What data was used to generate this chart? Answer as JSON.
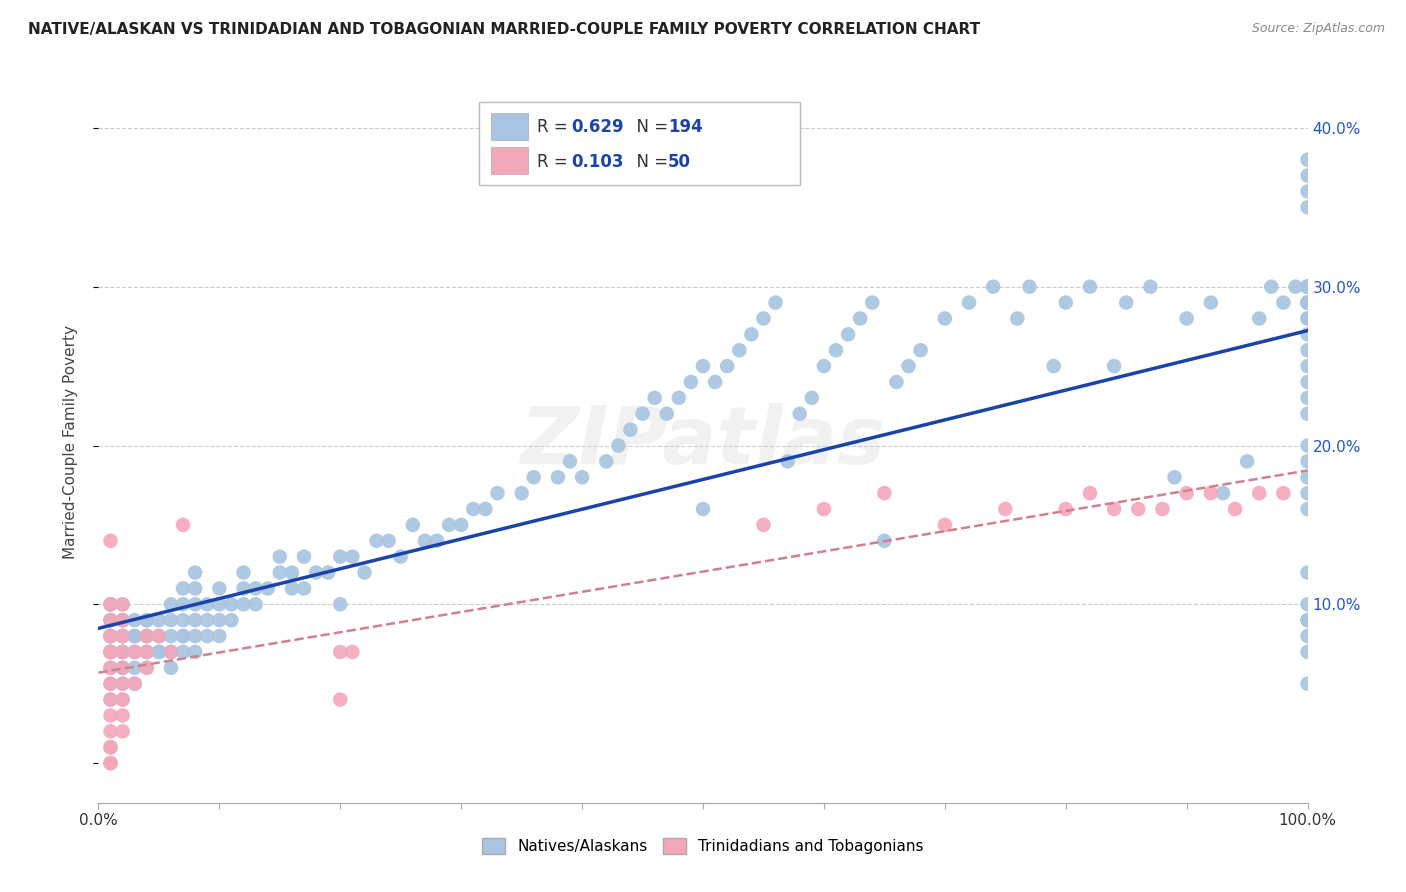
{
  "title": "NATIVE/ALASKAN VS TRINIDADIAN AND TOBAGONIAN MARRIED-COUPLE FAMILY POVERTY CORRELATION CHART",
  "source": "Source: ZipAtlas.com",
  "ylabel": "Married-Couple Family Poverty",
  "ytick_vals": [
    0.0,
    0.1,
    0.2,
    0.3,
    0.4
  ],
  "ytick_labels_right": [
    "",
    "10.0%",
    "20.0%",
    "30.0%",
    "40.0%"
  ],
  "blue_R": 0.629,
  "blue_N": 194,
  "pink_R": 0.103,
  "pink_N": 50,
  "blue_color": "#a8c4e0",
  "pink_color": "#f4a7b9",
  "blue_line_color": "#1a44aa",
  "pink_line_color": "#d08090",
  "watermark": "ZIPatlas",
  "blue_x": [
    0.01,
    0.01,
    0.01,
    0.01,
    0.01,
    0.01,
    0.01,
    0.01,
    0.01,
    0.01,
    0.01,
    0.01,
    0.01,
    0.01,
    0.02,
    0.02,
    0.02,
    0.02,
    0.02,
    0.02,
    0.02,
    0.02,
    0.02,
    0.02,
    0.02,
    0.02,
    0.03,
    0.03,
    0.03,
    0.03,
    0.03,
    0.03,
    0.03,
    0.04,
    0.04,
    0.04,
    0.04,
    0.04,
    0.04,
    0.04,
    0.05,
    0.05,
    0.05,
    0.05,
    0.05,
    0.06,
    0.06,
    0.06,
    0.06,
    0.06,
    0.06,
    0.07,
    0.07,
    0.07,
    0.07,
    0.07,
    0.07,
    0.08,
    0.08,
    0.08,
    0.08,
    0.08,
    0.08,
    0.09,
    0.09,
    0.09,
    0.1,
    0.1,
    0.1,
    0.1,
    0.11,
    0.11,
    0.12,
    0.12,
    0.12,
    0.13,
    0.13,
    0.14,
    0.15,
    0.15,
    0.16,
    0.16,
    0.17,
    0.17,
    0.18,
    0.19,
    0.2,
    0.2,
    0.21,
    0.22,
    0.23,
    0.24,
    0.25,
    0.26,
    0.27,
    0.28,
    0.29,
    0.3,
    0.31,
    0.32,
    0.33,
    0.35,
    0.36,
    0.38,
    0.39,
    0.4,
    0.42,
    0.43,
    0.44,
    0.45,
    0.46,
    0.47,
    0.48,
    0.49,
    0.5,
    0.5,
    0.51,
    0.52,
    0.53,
    0.54,
    0.55,
    0.56,
    0.57,
    0.58,
    0.59,
    0.6,
    0.61,
    0.62,
    0.63,
    0.64,
    0.65,
    0.66,
    0.67,
    0.68,
    0.7,
    0.72,
    0.74,
    0.76,
    0.77,
    0.79,
    0.8,
    0.82,
    0.84,
    0.85,
    0.87,
    0.89,
    0.9,
    0.92,
    0.93,
    0.95,
    0.96,
    0.97,
    0.98,
    0.99,
    1.0,
    1.0,
    1.0,
    1.0,
    1.0,
    1.0,
    1.0,
    1.0,
    1.0,
    1.0,
    1.0,
    1.0,
    1.0,
    1.0,
    1.0,
    1.0,
    1.0,
    1.0,
    1.0,
    1.0,
    1.0,
    1.0,
    1.0,
    1.0,
    1.0,
    1.0,
    1.0,
    1.0,
    1.0,
    1.0,
    1.0,
    1.0,
    1.0,
    1.0,
    1.0,
    1.0,
    1.0,
    1.0,
    1.0,
    1.0
  ],
  "blue_y": [
    0.04,
    0.05,
    0.06,
    0.07,
    0.07,
    0.07,
    0.08,
    0.08,
    0.08,
    0.08,
    0.09,
    0.09,
    0.1,
    0.1,
    0.04,
    0.05,
    0.06,
    0.06,
    0.07,
    0.07,
    0.08,
    0.08,
    0.08,
    0.09,
    0.09,
    0.1,
    0.05,
    0.06,
    0.07,
    0.07,
    0.08,
    0.08,
    0.09,
    0.06,
    0.07,
    0.07,
    0.08,
    0.08,
    0.09,
    0.09,
    0.07,
    0.07,
    0.08,
    0.08,
    0.09,
    0.06,
    0.07,
    0.07,
    0.08,
    0.09,
    0.1,
    0.07,
    0.08,
    0.08,
    0.09,
    0.1,
    0.11,
    0.07,
    0.08,
    0.09,
    0.1,
    0.11,
    0.12,
    0.08,
    0.09,
    0.1,
    0.08,
    0.09,
    0.1,
    0.11,
    0.09,
    0.1,
    0.1,
    0.11,
    0.12,
    0.1,
    0.11,
    0.11,
    0.12,
    0.13,
    0.11,
    0.12,
    0.11,
    0.13,
    0.12,
    0.12,
    0.1,
    0.13,
    0.13,
    0.12,
    0.14,
    0.14,
    0.13,
    0.15,
    0.14,
    0.14,
    0.15,
    0.15,
    0.16,
    0.16,
    0.17,
    0.17,
    0.18,
    0.18,
    0.19,
    0.18,
    0.19,
    0.2,
    0.21,
    0.22,
    0.23,
    0.22,
    0.23,
    0.24,
    0.25,
    0.16,
    0.24,
    0.25,
    0.26,
    0.27,
    0.28,
    0.29,
    0.19,
    0.22,
    0.23,
    0.25,
    0.26,
    0.27,
    0.28,
    0.29,
    0.14,
    0.24,
    0.25,
    0.26,
    0.28,
    0.29,
    0.3,
    0.28,
    0.3,
    0.25,
    0.29,
    0.3,
    0.25,
    0.29,
    0.3,
    0.18,
    0.28,
    0.29,
    0.17,
    0.19,
    0.28,
    0.3,
    0.29,
    0.3,
    0.05,
    0.07,
    0.08,
    0.09,
    0.09,
    0.1,
    0.12,
    0.16,
    0.17,
    0.18,
    0.19,
    0.2,
    0.22,
    0.23,
    0.24,
    0.25,
    0.26,
    0.27,
    0.28,
    0.29,
    0.3,
    0.29,
    0.3,
    0.3,
    0.29,
    0.3,
    0.29,
    0.3,
    0.29,
    0.3,
    0.3,
    0.3,
    0.3,
    0.28,
    0.29,
    0.3,
    0.35,
    0.36,
    0.37,
    0.38
  ],
  "pink_x": [
    0.01,
    0.01,
    0.01,
    0.01,
    0.01,
    0.01,
    0.01,
    0.01,
    0.01,
    0.01,
    0.01,
    0.01,
    0.01,
    0.01,
    0.01,
    0.02,
    0.02,
    0.02,
    0.02,
    0.02,
    0.02,
    0.02,
    0.02,
    0.02,
    0.03,
    0.03,
    0.04,
    0.04,
    0.04,
    0.05,
    0.06,
    0.07,
    0.2,
    0.2,
    0.21,
    0.55,
    0.6,
    0.65,
    0.7,
    0.75,
    0.8,
    0.82,
    0.84,
    0.86,
    0.88,
    0.9,
    0.92,
    0.94,
    0.96,
    0.98
  ],
  "pink_y": [
    0.0,
    0.0,
    0.01,
    0.01,
    0.02,
    0.03,
    0.04,
    0.05,
    0.06,
    0.07,
    0.07,
    0.08,
    0.09,
    0.1,
    0.14,
    0.02,
    0.03,
    0.04,
    0.05,
    0.06,
    0.07,
    0.08,
    0.09,
    0.1,
    0.05,
    0.07,
    0.06,
    0.07,
    0.08,
    0.08,
    0.07,
    0.15,
    0.04,
    0.07,
    0.07,
    0.15,
    0.16,
    0.17,
    0.15,
    0.16,
    0.16,
    0.17,
    0.16,
    0.16,
    0.16,
    0.17,
    0.17,
    0.16,
    0.17,
    0.17
  ]
}
